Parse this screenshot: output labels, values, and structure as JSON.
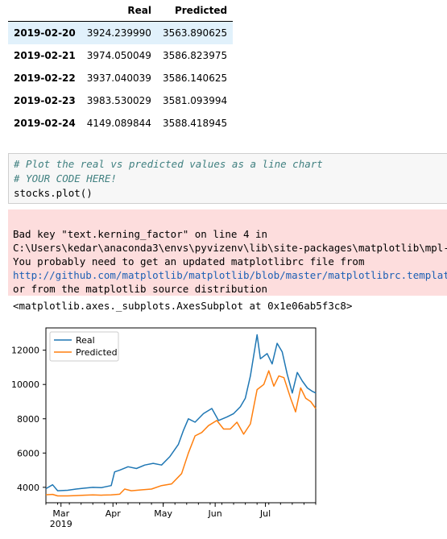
{
  "table": {
    "headers": [
      "",
      "Real",
      "Predicted"
    ],
    "rows": [
      {
        "date": "2019-02-20",
        "real": "3924.239990",
        "predicted": "3563.890625"
      },
      {
        "date": "2019-02-21",
        "real": "3974.050049",
        "predicted": "3586.823975"
      },
      {
        "date": "2019-02-22",
        "real": "3937.040039",
        "predicted": "3586.140625"
      },
      {
        "date": "2019-02-23",
        "real": "3983.530029",
        "predicted": "3581.093994"
      },
      {
        "date": "2019-02-24",
        "real": "4149.089844",
        "predicted": "3588.418945"
      }
    ]
  },
  "code": {
    "comment1": "# Plot the real vs predicted values as a line chart",
    "comment2": "# YOUR CODE HERE!",
    "line3": "stocks.plot()"
  },
  "stderr": {
    "line1": "Bad key \"text.kerning_factor\" on line 4 in",
    "line2": "C:\\Users\\kedar\\anaconda3\\envs\\pyvizenv\\lib\\site-packages\\matplotlib\\mpl-data\\stylelib\\_classic_test_patch.mplstyle.",
    "line3": "You probably need to get an updated matplotlibrc file from",
    "link": "http://github.com/matplotlib/matplotlib/blob/master/matplotlibrc.template",
    "line5": "or from the matplotlib source distribution"
  },
  "output_repr": "<matplotlib.axes._subplots.AxesSubplot at 0x1e06ab5f3c8>",
  "colors": {
    "real": "#1f77b4",
    "predicted": "#ff7f0e"
  },
  "chart_data": {
    "type": "line",
    "x_axis": {
      "type": "date",
      "range": [
        "2019-02-20",
        "2019-07-31"
      ],
      "tick_labels": [
        "Mar",
        "Apr",
        "May",
        "Jun",
        "Jul"
      ],
      "tick_dates": [
        "2019-03-01",
        "2019-04-01",
        "2019-05-01",
        "2019-06-01",
        "2019-07-01"
      ],
      "year_label": "2019"
    },
    "y_axis": {
      "ticks": [
        4000,
        6000,
        8000,
        10000,
        12000
      ],
      "ylim": [
        3100,
        13300
      ]
    },
    "legend": {
      "placement": "upper-left",
      "entries": [
        "Real",
        "Predicted"
      ]
    },
    "grid": false,
    "series": [
      {
        "name": "Real",
        "points": [
          [
            "2019-02-20",
            3924
          ],
          [
            "2019-02-24",
            4149
          ],
          [
            "2019-02-27",
            3800
          ],
          [
            "2019-03-05",
            3830
          ],
          [
            "2019-03-10",
            3900
          ],
          [
            "2019-03-15",
            3950
          ],
          [
            "2019-03-20",
            4000
          ],
          [
            "2019-03-25",
            3980
          ],
          [
            "2019-03-31",
            4100
          ],
          [
            "2019-04-02",
            4900
          ],
          [
            "2019-04-05",
            5000
          ],
          [
            "2019-04-10",
            5200
          ],
          [
            "2019-04-15",
            5100
          ],
          [
            "2019-04-20",
            5300
          ],
          [
            "2019-04-25",
            5400
          ],
          [
            "2019-04-30",
            5300
          ],
          [
            "2019-05-05",
            5800
          ],
          [
            "2019-05-10",
            6500
          ],
          [
            "2019-05-13",
            7300
          ],
          [
            "2019-05-16",
            8000
          ],
          [
            "2019-05-20",
            7800
          ],
          [
            "2019-05-25",
            8300
          ],
          [
            "2019-05-30",
            8600
          ],
          [
            "2019-06-03",
            7900
          ],
          [
            "2019-06-08",
            8100
          ],
          [
            "2019-06-12",
            8300
          ],
          [
            "2019-06-16",
            8700
          ],
          [
            "2019-06-19",
            9200
          ],
          [
            "2019-06-22",
            10500
          ],
          [
            "2019-06-26",
            12900
          ],
          [
            "2019-06-28",
            11500
          ],
          [
            "2019-07-02",
            11800
          ],
          [
            "2019-07-05",
            11200
          ],
          [
            "2019-07-08",
            12400
          ],
          [
            "2019-07-11",
            11900
          ],
          [
            "2019-07-14",
            10600
          ],
          [
            "2019-07-17",
            9500
          ],
          [
            "2019-07-20",
            10700
          ],
          [
            "2019-07-23",
            10200
          ],
          [
            "2019-07-26",
            9800
          ],
          [
            "2019-07-29",
            9600
          ],
          [
            "2019-07-31",
            9500
          ]
        ]
      },
      {
        "name": "Predicted",
        "points": [
          [
            "2019-02-20",
            3564
          ],
          [
            "2019-02-24",
            3588
          ],
          [
            "2019-02-27",
            3500
          ],
          [
            "2019-03-05",
            3500
          ],
          [
            "2019-03-10",
            3520
          ],
          [
            "2019-03-15",
            3540
          ],
          [
            "2019-03-20",
            3560
          ],
          [
            "2019-03-25",
            3540
          ],
          [
            "2019-03-31",
            3560
          ],
          [
            "2019-04-05",
            3600
          ],
          [
            "2019-04-08",
            3900
          ],
          [
            "2019-04-12",
            3800
          ],
          [
            "2019-04-18",
            3850
          ],
          [
            "2019-04-24",
            3900
          ],
          [
            "2019-04-30",
            4100
          ],
          [
            "2019-05-06",
            4200
          ],
          [
            "2019-05-12",
            4800
          ],
          [
            "2019-05-16",
            6000
          ],
          [
            "2019-05-20",
            7000
          ],
          [
            "2019-05-24",
            7200
          ],
          [
            "2019-05-28",
            7600
          ],
          [
            "2019-06-02",
            7900
          ],
          [
            "2019-06-06",
            7400
          ],
          [
            "2019-06-10",
            7400
          ],
          [
            "2019-06-14",
            7800
          ],
          [
            "2019-06-18",
            7100
          ],
          [
            "2019-06-22",
            7700
          ],
          [
            "2019-06-26",
            9700
          ],
          [
            "2019-06-30",
            10000
          ],
          [
            "2019-07-03",
            10800
          ],
          [
            "2019-07-06",
            9900
          ],
          [
            "2019-07-09",
            10500
          ],
          [
            "2019-07-12",
            10400
          ],
          [
            "2019-07-16",
            9200
          ],
          [
            "2019-07-19",
            8400
          ],
          [
            "2019-07-22",
            9800
          ],
          [
            "2019-07-25",
            9200
          ],
          [
            "2019-07-28",
            9000
          ],
          [
            "2019-07-31",
            8600
          ]
        ]
      }
    ]
  }
}
